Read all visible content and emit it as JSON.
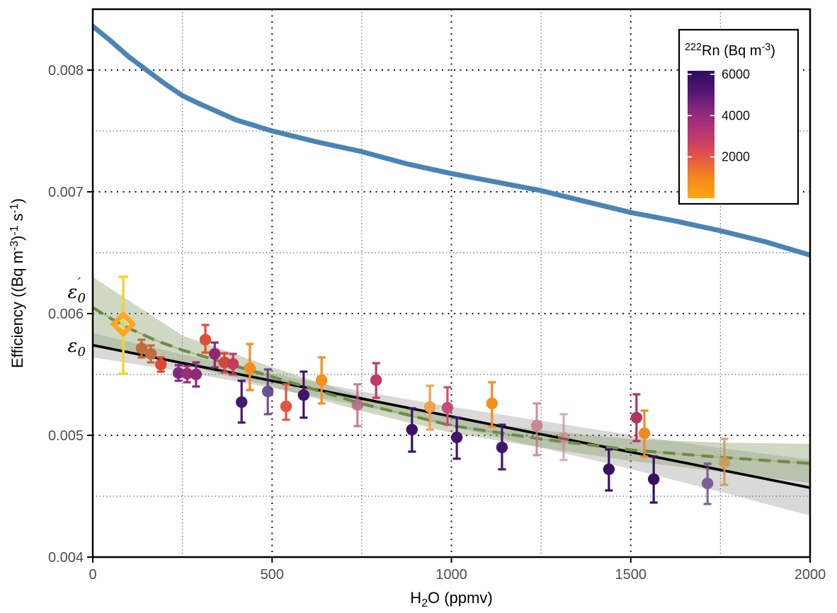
{
  "chart_data": {
    "type": "scatter",
    "title": "",
    "xlabel_segments": [
      {
        "t": "H"
      },
      {
        "t": "2",
        "s": -1
      },
      {
        "t": "O (ppmv)"
      }
    ],
    "ylabel_segments": [
      {
        "t": "Efficiency ((Bq m"
      },
      {
        "t": "-3",
        "s": 1
      },
      {
        "t": ")"
      },
      {
        "t": "-1",
        "s": 1
      },
      {
        "t": " s"
      },
      {
        "t": "-1",
        "s": 1
      },
      {
        "t": ")"
      }
    ],
    "xlim": [
      0,
      2000
    ],
    "ylim": [
      0.004,
      0.0085
    ],
    "x_major_ticks": [
      0,
      500,
      1000,
      1500,
      2000
    ],
    "x_minor_ticks": [
      250,
      750,
      1250,
      1750
    ],
    "y_major_ticks": [
      0.004,
      0.005,
      0.006,
      0.007,
      0.008
    ],
    "y_minor_ticks": [
      0.0045,
      0.0055,
      0.0065,
      0.0075
    ],
    "grid": {
      "major": "bold dotted",
      "minor": "fine dotted"
    },
    "colors": {
      "blue_curve": "#4a84b5",
      "linear_fit": "#000000",
      "linear_band": "rgba(130,130,130,0.30)",
      "dashed_fit": "#6d8b46",
      "dashed_band": "rgba(141,163,110,0.42)",
      "tick_text": "#4d4d4d",
      "axis_title": "#000000",
      "diamond": "#ffa51e",
      "diamond_errorbar": "#f2d335"
    },
    "blue_curve": {
      "x": [
        0,
        50,
        100,
        150,
        200,
        250,
        300,
        400,
        500,
        625,
        750,
        875,
        1000,
        1125,
        1250,
        1375,
        1500,
        1625,
        1750,
        1875,
        2000
      ],
      "y": [
        0.00836,
        0.00824,
        0.00811,
        0.008,
        0.00789,
        0.00779,
        0.00772,
        0.00759,
        0.0075,
        0.00741,
        0.00733,
        0.00723,
        0.00715,
        0.00708,
        0.00701,
        0.00692,
        0.00683,
        0.00676,
        0.00668,
        0.00659,
        0.00648
      ]
    },
    "linear_fit": {
      "x": [
        0,
        2000
      ],
      "y": [
        0.00574,
        0.00457
      ]
    },
    "linear_band": {
      "x": [
        0,
        250,
        500,
        750,
        1000,
        1250,
        1500,
        1750,
        2000
      ],
      "upper": [
        0.00584,
        0.005664,
        0.005508,
        0.005361,
        0.005235,
        0.005119,
        0.005003,
        0.004896,
        0.0048
      ],
      "lower": [
        0.00564,
        0.005524,
        0.005388,
        0.005241,
        0.005075,
        0.004899,
        0.004723,
        0.004536,
        0.00434
      ]
    },
    "dashed_fit": {
      "x": [
        0,
        50,
        100,
        175,
        250,
        375,
        500,
        750,
        1000,
        1250,
        1500,
        1750,
        2000
      ],
      "y": [
        0.00605,
        0.00596,
        0.00588,
        0.00578,
        0.0057,
        0.00559,
        0.00548,
        0.00526,
        0.00508,
        0.00497,
        0.00488,
        0.00482,
        0.00477
      ]
    },
    "dashed_band": {
      "x": [
        0,
        250,
        500,
        750,
        1000,
        1250,
        1500,
        1750,
        2000
      ],
      "upper": [
        0.0063,
        0.00582,
        0.00556,
        0.00532,
        0.00514,
        0.00504,
        0.00497,
        0.00494,
        0.00493
      ],
      "lower": [
        0.00573,
        0.00558,
        0.0054,
        0.0052,
        0.00502,
        0.0049,
        0.00479,
        0.0047,
        0.00461
      ]
    },
    "calibration_diamond": {
      "x": 85,
      "y": 0.005913,
      "lo": 0.005506,
      "hi": 0.006302
    },
    "points": [
      {
        "x": 136,
        "y": 0.005715,
        "lo": 0.00564,
        "hi": 0.005785,
        "c": "#bf6b3c",
        "o": 1
      },
      {
        "x": 162,
        "y": 0.005669,
        "lo": 0.005599,
        "hi": 0.005738,
        "c": "#c16b40",
        "o": 1
      },
      {
        "x": 190,
        "y": 0.005581,
        "lo": 0.005523,
        "hi": 0.00564,
        "c": "#dc4838",
        "o": 1
      },
      {
        "x": 239,
        "y": 0.005512,
        "lo": 0.005448,
        "hi": 0.005576,
        "c": "#7d2b7e",
        "o": 1
      },
      {
        "x": 263,
        "y": 0.005506,
        "lo": 0.005436,
        "hi": 0.00557,
        "c": "#9c2d72",
        "o": 1
      },
      {
        "x": 288,
        "y": 0.0055,
        "lo": 0.005401,
        "hi": 0.005599,
        "c": "#8f2a77",
        "o": 1
      },
      {
        "x": 314,
        "y": 0.005785,
        "lo": 0.00568,
        "hi": 0.005907,
        "c": "#df4e3b",
        "o": 1
      },
      {
        "x": 340,
        "y": 0.005669,
        "lo": 0.005558,
        "hi": 0.005762,
        "c": "#92276f",
        "o": 1
      },
      {
        "x": 367,
        "y": 0.005599,
        "lo": 0.005517,
        "hi": 0.005674,
        "c": "#d8453a",
        "o": 1
      },
      {
        "x": 391,
        "y": 0.005587,
        "lo": 0.0055,
        "hi": 0.005669,
        "c": "#c23a5c",
        "o": 1
      },
      {
        "x": 415,
        "y": 0.005273,
        "lo": 0.005105,
        "hi": 0.005448,
        "c": "#401a6c",
        "o": 1
      },
      {
        "x": 438,
        "y": 0.005552,
        "lo": 0.005372,
        "hi": 0.00575,
        "c": "#f68c1c",
        "o": 1
      },
      {
        "x": 488,
        "y": 0.00536,
        "lo": 0.005174,
        "hi": 0.005541,
        "c": "#4a2670",
        "o": 0.8
      },
      {
        "x": 539,
        "y": 0.005238,
        "lo": 0.005128,
        "hi": 0.005419,
        "c": "#e05542",
        "o": 1
      },
      {
        "x": 588,
        "y": 0.005331,
        "lo": 0.005145,
        "hi": 0.005523,
        "c": "#3f1468",
        "o": 1
      },
      {
        "x": 638,
        "y": 0.005453,
        "lo": 0.005262,
        "hi": 0.00564,
        "c": "#f78e1e",
        "o": 1
      },
      {
        "x": 738,
        "y": 0.00525,
        "lo": 0.005076,
        "hi": 0.005419,
        "c": "#b75f7d",
        "o": 0.8
      },
      {
        "x": 790,
        "y": 0.005453,
        "lo": 0.005308,
        "hi": 0.005593,
        "c": "#c13a60",
        "o": 1
      },
      {
        "x": 890,
        "y": 0.005047,
        "lo": 0.004866,
        "hi": 0.005221,
        "c": "#3c1260",
        "o": 1
      },
      {
        "x": 940,
        "y": 0.005233,
        "lo": 0.005047,
        "hi": 0.005407,
        "c": "#f2a04f",
        "o": 1
      },
      {
        "x": 989,
        "y": 0.005227,
        "lo": 0.005087,
        "hi": 0.005395,
        "c": "#c74e77",
        "o": 1
      },
      {
        "x": 1015,
        "y": 0.004983,
        "lo": 0.004808,
        "hi": 0.005145,
        "c": "#41156a",
        "o": 1
      },
      {
        "x": 1113,
        "y": 0.005262,
        "lo": 0.00507,
        "hi": 0.005436,
        "c": "#f68d1b",
        "o": 1
      },
      {
        "x": 1141,
        "y": 0.004901,
        "lo": 0.004721,
        "hi": 0.005087,
        "c": "#44156c",
        "o": 1
      },
      {
        "x": 1238,
        "y": 0.005081,
        "lo": 0.004837,
        "hi": 0.005262,
        "c": "#c97287",
        "o": 0.8
      },
      {
        "x": 1313,
        "y": 0.004983,
        "lo": 0.004797,
        "hi": 0.005174,
        "c": "#c78493",
        "o": 0.65
      },
      {
        "x": 1439,
        "y": 0.004721,
        "lo": 0.004547,
        "hi": 0.004884,
        "c": "#3a1062",
        "o": 1
      },
      {
        "x": 1516,
        "y": 0.005145,
        "lo": 0.004953,
        "hi": 0.005337,
        "c": "#b5315e",
        "o": 1
      },
      {
        "x": 1538,
        "y": 0.005017,
        "lo": 0.004826,
        "hi": 0.005203,
        "c": "#f08b21",
        "o": 1
      },
      {
        "x": 1564,
        "y": 0.00464,
        "lo": 0.004448,
        "hi": 0.004826,
        "c": "#371060",
        "o": 1
      },
      {
        "x": 1714,
        "y": 0.004605,
        "lo": 0.004436,
        "hi": 0.004767,
        "c": "#6a4a8c",
        "o": 0.85
      },
      {
        "x": 1761,
        "y": 0.004779,
        "lo": 0.004593,
        "hi": 0.004971,
        "c": "#c99a52",
        "o": 0.85
      }
    ],
    "annotations": [
      {
        "base": "ε",
        "sub": "0",
        "prime": "′",
        "x": -45,
        "y": 0.00618
      },
      {
        "base": "ε",
        "sub": "0",
        "prime": "",
        "x": -45,
        "y": 0.005738
      }
    ],
    "legend": {
      "title_segments": [
        {
          "t": "222",
          "s": 1
        },
        {
          "t": "Rn (Bq m"
        },
        {
          "t": "-3",
          "s": 1
        },
        {
          "t": ")"
        }
      ],
      "tick_values": [
        6000,
        4000,
        2000
      ],
      "scale_top": 6170,
      "scale_bottom": 0,
      "gradient_stops": [
        [
          "0%",
          "#2c0f5e"
        ],
        [
          "15%",
          "#4f1373"
        ],
        [
          "30%",
          "#85267f"
        ],
        [
          "45%",
          "#b03377"
        ],
        [
          "58%",
          "#cf4161"
        ],
        [
          "70%",
          "#e65d41"
        ],
        [
          "85%",
          "#f68a1c"
        ],
        [
          "100%",
          "#fca50f"
        ]
      ]
    }
  }
}
